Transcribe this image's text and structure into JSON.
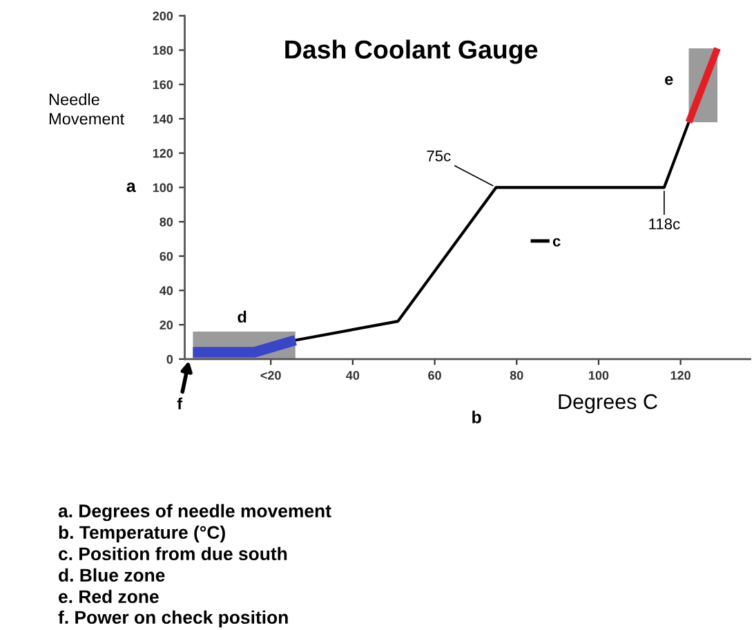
{
  "chart_data": {
    "type": "line",
    "title": "Dash Coolant Gauge",
    "xlabel": "b",
    "ylabel": "a",
    "xlim": [
      -1,
      137
    ],
    "xticks": [
      {
        "value": 20,
        "label": "<20"
      },
      40,
      60,
      80,
      100,
      120
    ],
    "ylim": [
      0,
      200
    ],
    "yticks": [
      0,
      20,
      40,
      60,
      80,
      100,
      120,
      140,
      160,
      180,
      200
    ],
    "legend": "center",
    "series": [
      {
        "name": "c",
        "color": "#000000",
        "x": [
          26,
          51,
          75,
          116,
          122
        ],
        "values": [
          11,
          22,
          100,
          100,
          138
        ]
      },
      {
        "color": "#3a46c8",
        "x": [
          1,
          16,
          26
        ],
        "values": [
          4,
          4,
          11
        ],
        "lower": [
          0,
          0,
          0
        ],
        "upper": [
          16,
          16,
          16
        ]
      },
      {
        "color": "#e41e26",
        "x": [
          122,
          129
        ],
        "values": [
          138,
          181
        ],
        "lower": [
          138,
          138
        ],
        "upper": [
          181,
          181
        ]
      }
    ],
    "annotations": [
      {
        "text": "75c",
        "x": 75,
        "y": 100
      },
      {
        "text": "118c",
        "x": 116,
        "y": 100
      },
      {
        "text": "d",
        "x": 13,
        "y": 16
      },
      {
        "text": "e",
        "x": 122,
        "y": 160
      },
      "f",
      "Needle\nMovement",
      "Degrees C",
      "a. Degrees of needle movement",
      "b. Temperature (°C)",
      "c. Position from due south",
      "d. Blue zone",
      "e. Red zone",
      "f. Power on check position"
    ]
  }
}
